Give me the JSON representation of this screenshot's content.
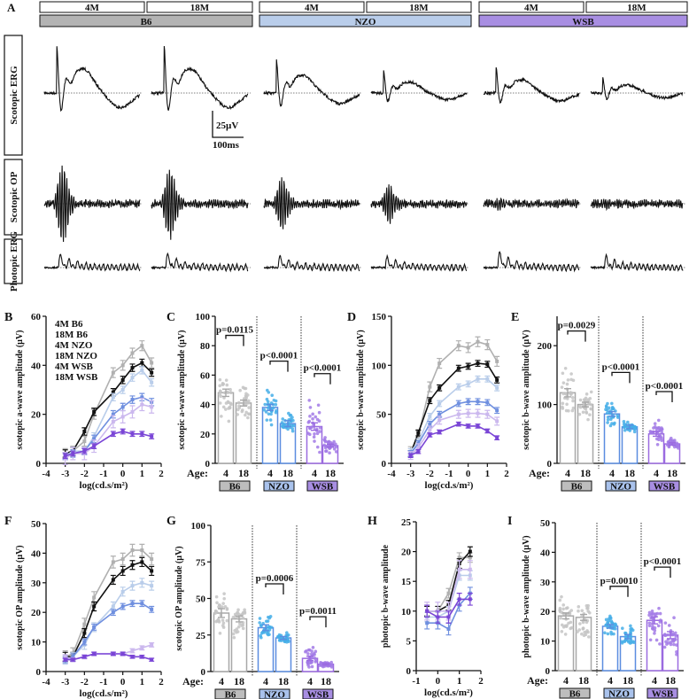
{
  "panel_a": {
    "letter": "A",
    "ages": [
      "4M",
      "18M",
      "4M",
      "18M",
      "4M",
      "18M"
    ],
    "strains": [
      {
        "name": "B6",
        "color": "#b3b3b3"
      },
      {
        "name": "NZO",
        "color": "#b9cdea"
      },
      {
        "name": "WSB",
        "color": "#a88ee2"
      }
    ],
    "rows": [
      "Scotopic ERG",
      "Scotopic OP",
      "Photopic ERG"
    ],
    "scale_amp": "25µV",
    "scale_time": "100ms"
  },
  "legend": [
    "4M B6",
    "18M B6",
    "4M NZO",
    "18M NZO",
    "4M WSB",
    "18M WSB"
  ],
  "series_colors": [
    "#b0b0b0",
    "#111111",
    "#b9cdea",
    "#6f8fdf",
    "#cbb8ee",
    "#7a45d6"
  ],
  "chart_data": [
    {
      "id": "B",
      "type": "line",
      "letter": "B",
      "ylabel": "scotopic a-wave amplitude (µV)",
      "xlabel": "log(cd.s/m²)",
      "xlim": [
        -4,
        2
      ],
      "ylim": [
        0,
        60
      ],
      "xticks": [
        "-4",
        "-3",
        "-2",
        "-1",
        "0",
        "1",
        "2"
      ],
      "yticks": [
        "0",
        "20",
        "40",
        "60"
      ],
      "x": [
        -3,
        -2.6,
        -2,
        -1.5,
        -0.5,
        0,
        0.5,
        1,
        1.5
      ],
      "series": [
        {
          "name": "4M B6",
          "values": [
            4,
            5,
            9,
            20,
            37,
            40,
            45,
            48,
            41
          ],
          "err": 2
        },
        {
          "name": "18M B6",
          "values": [
            4,
            5,
            13,
            21,
            29,
            34,
            39,
            41,
            37
          ],
          "err": 1.5
        },
        {
          "name": "4M NZO",
          "values": [
            3,
            5,
            5,
            11,
            27,
            30,
            35,
            38,
            33
          ],
          "err": 1.5
        },
        {
          "name": "18M NZO",
          "values": [
            3,
            4,
            5,
            10,
            20,
            23,
            26,
            27,
            25
          ],
          "err": 1.5
        },
        {
          "name": "4M WSB",
          "values": [
            2,
            4,
            4,
            7,
            17,
            19,
            21,
            24,
            23
          ],
          "err": 2.5
        },
        {
          "name": "18M WSB",
          "values": [
            3,
            4,
            5,
            7,
            12,
            13,
            12,
            12,
            11
          ],
          "err": 1
        }
      ]
    },
    {
      "id": "C",
      "type": "bar",
      "letter": "C",
      "ylabel": "scotopic a-wave amplitude (µV)",
      "ylim": [
        0,
        100
      ],
      "yticks": [
        "0",
        "20",
        "40",
        "60",
        "80",
        "100"
      ],
      "age_label": "Age:",
      "ages": [
        "4",
        "18"
      ],
      "groups": [
        "B6",
        "NZO",
        "WSB"
      ],
      "means": [
        48,
        41,
        38,
        27,
        25,
        12
      ],
      "sem": [
        2.5,
        2,
        2,
        2,
        2.5,
        1
      ],
      "spread": [
        14,
        10,
        9,
        6,
        12,
        4
      ],
      "pvalues": [
        "p=0.0115",
        "p<0.0001",
        "p<0.0001"
      ]
    },
    {
      "id": "D",
      "type": "line",
      "letter": "D",
      "ylabel": "scotopic  b-wave amplitude (µV)",
      "xlabel": "log(cd.s/m²)",
      "xlim": [
        -4,
        2
      ],
      "ylim": [
        0,
        150
      ],
      "xticks": [
        "-4",
        "-3",
        "-2",
        "-1",
        "0",
        "1",
        "2"
      ],
      "yticks": [
        "0",
        "50",
        "100",
        "150"
      ],
      "x": [
        -3,
        -2.6,
        -2,
        -1.5,
        -0.5,
        0,
        0.5,
        1,
        1.5
      ],
      "series": [
        {
          "name": "4M B6",
          "values": [
            12,
            28,
            78,
            102,
            120,
            118,
            124,
            121,
            104
          ],
          "err": 5
        },
        {
          "name": "18M B6",
          "values": [
            10,
            31,
            64,
            77,
            97,
            99,
            102,
            101,
            85
          ],
          "err": 3
        },
        {
          "name": "4M NZO",
          "values": [
            12,
            22,
            48,
            61,
            78,
            81,
            86,
            86,
            77
          ],
          "err": 3
        },
        {
          "name": "18M NZO",
          "values": [
            10,
            20,
            40,
            50,
            61,
            63,
            63,
            62,
            54
          ],
          "err": 3
        },
        {
          "name": "4M WSB",
          "values": [
            8,
            16,
            34,
            44,
            50,
            51,
            51,
            50,
            43
          ],
          "err": 4
        },
        {
          "name": "18M WSB",
          "values": [
            8,
            12,
            29,
            32,
            40,
            38,
            38,
            33,
            26
          ],
          "err": 2
        }
      ]
    },
    {
      "id": "E",
      "type": "bar",
      "letter": "E",
      "ylabel": "scotopic b-wave amplitude (µV)",
      "ylim": [
        0,
        250
      ],
      "yticks": [
        "0",
        "100",
        "200"
      ],
      "age_label": "Age:",
      "ages": [
        "4",
        "18"
      ],
      "groups": [
        "B6",
        "NZO",
        "WSB"
      ],
      "means": [
        120,
        100,
        84,
        62,
        50,
        33
      ],
      "sem": [
        7,
        4,
        4,
        3,
        4,
        2
      ],
      "spread": [
        40,
        22,
        17,
        8,
        18,
        8
      ],
      "pvalues": [
        "p=0.0029",
        "p<0.0001",
        "p<0.0001"
      ]
    },
    {
      "id": "F",
      "type": "line",
      "letter": "F",
      "ylabel": "scotopic OP amplitude (µV)",
      "xlabel": "log(cd.s/m²)",
      "xlim": [
        -4,
        2
      ],
      "ylim": [
        0,
        50
      ],
      "xticks": [
        "-4",
        "-3",
        "-2",
        "-1",
        "0",
        "1",
        "2"
      ],
      "yticks": [
        "0",
        "10",
        "20",
        "30",
        "40",
        "50"
      ],
      "x": [
        -3,
        -2.6,
        -2,
        -1.5,
        -0.5,
        0,
        0.5,
        1,
        1.5
      ],
      "series": [
        {
          "name": "4M B6",
          "values": [
            5,
            6,
            16,
            25,
            37,
            38,
            41,
            41,
            38
          ],
          "err": 2
        },
        {
          "name": "18M B6",
          "values": [
            5,
            5,
            13,
            22,
            31,
            34,
            36,
            37,
            34
          ],
          "err": 1.5
        },
        {
          "name": "4M NZO",
          "values": [
            4,
            5,
            9,
            15,
            22,
            27,
            29,
            30,
            29
          ],
          "err": 1.5
        },
        {
          "name": "18M NZO",
          "values": [
            4,
            5,
            10,
            15,
            20,
            22,
            23,
            23,
            21
          ],
          "err": 1
        },
        {
          "name": "4M WSB",
          "values": [
            5,
            4,
            5,
            6,
            6,
            6,
            7,
            8,
            9
          ],
          "err": 0.7
        },
        {
          "name": "18M WSB",
          "values": [
            4,
            4,
            5,
            6,
            6,
            6,
            5,
            5,
            4
          ],
          "err": 0.5
        }
      ]
    },
    {
      "id": "G",
      "type": "bar",
      "letter": "G",
      "ylabel": "scotopic OP amplitude (µV)",
      "ylim": [
        0,
        100
      ],
      "yticks": [
        "0",
        "25",
        "50",
        "75",
        "100"
      ],
      "age_label": "Age:",
      "ages": [
        "4",
        "18"
      ],
      "groups": [
        "B6",
        "NZO",
        "WSB"
      ],
      "means": [
        40,
        36,
        30,
        23,
        9,
        5
      ],
      "sem": [
        3,
        2,
        2,
        1,
        1.5,
        0.5
      ],
      "spread": [
        12,
        9,
        8,
        3,
        7,
        2
      ],
      "pvalues": [
        "",
        "p=0.0006",
        "p=0.0011"
      ]
    },
    {
      "id": "H",
      "type": "line",
      "letter": "H",
      "ylabel": "photopic b-wave amplitude",
      "xlabel": "log(cd.s/m²)",
      "xlim": [
        -1,
        2
      ],
      "ylim": [
        0,
        25
      ],
      "xticks": [
        "-1",
        "0",
        "1",
        "2"
      ],
      "yticks": [
        "0",
        "5",
        "10",
        "15",
        "20",
        "25"
      ],
      "x": [
        -0.5,
        0,
        0.5,
        1,
        1.5
      ],
      "series": [
        {
          "name": "4M B6",
          "values": [
            10,
            10,
            13,
            19,
            19
          ],
          "err": 0.8
        },
        {
          "name": "18M B6",
          "values": [
            10,
            10,
            11,
            18,
            20
          ],
          "err": 0.8
        },
        {
          "name": "4M NZO",
          "values": [
            9,
            9,
            10,
            16,
            16
          ],
          "err": 0.8
        },
        {
          "name": "18M NZO",
          "values": [
            8,
            8,
            7,
            11,
            13
          ],
          "err": 1
        },
        {
          "name": "4M WSB",
          "values": [
            10,
            10,
            10,
            17,
            17
          ],
          "err": 1.5
        },
        {
          "name": "18M WSB",
          "values": [
            10,
            9,
            9,
            12,
            12
          ],
          "err": 1
        }
      ]
    },
    {
      "id": "I",
      "type": "bar",
      "letter": "I",
      "ylabel": "photopic b-wave amplitude (µV)",
      "ylim": [
        0,
        50
      ],
      "yticks": [
        "0",
        "10",
        "20",
        "30",
        "40",
        "50"
      ],
      "age_label": "Age:",
      "ages": [
        "4",
        "18"
      ],
      "groups": [
        "B6",
        "NZO",
        "WSB"
      ],
      "means": [
        18.5,
        18,
        15,
        11.5,
        17,
        12
      ],
      "sem": [
        1,
        1,
        0.6,
        0.7,
        1.2,
        1.2
      ],
      "spread": [
        6,
        6,
        3,
        3,
        6,
        5
      ],
      "pvalues": [
        "",
        "p=0.0010",
        "p<0.0001"
      ]
    }
  ]
}
